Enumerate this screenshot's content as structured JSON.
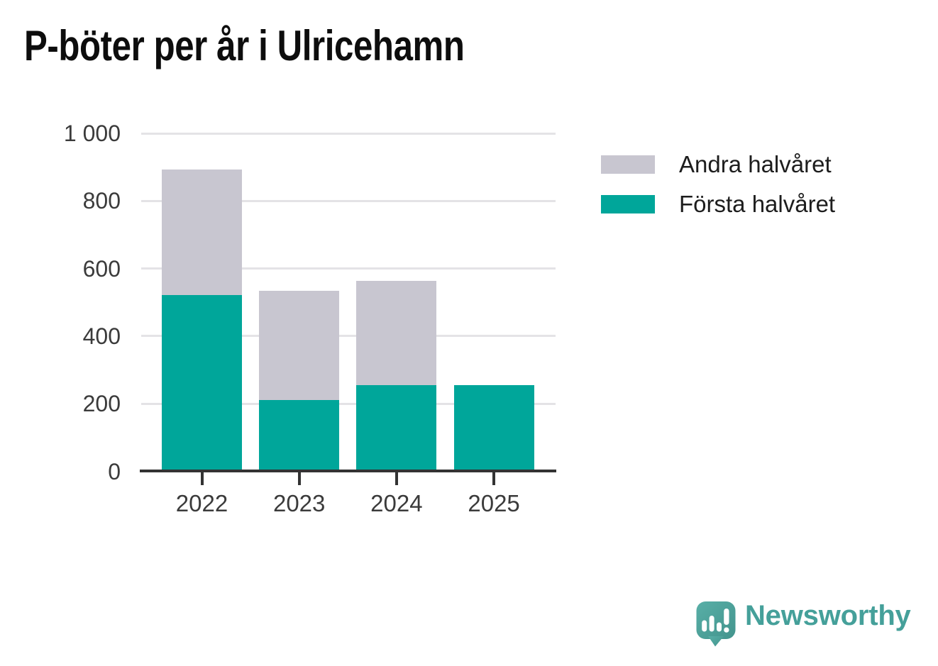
{
  "title": "P-böter per år i Ulricehamn",
  "legend": {
    "items": [
      {
        "label": "Andra halvåret",
        "color": "#c8c6d0"
      },
      {
        "label": "Första halvåret",
        "color": "#00a69a"
      }
    ]
  },
  "chart_data": {
    "type": "bar",
    "stacked": true,
    "title": "P-böter per år i Ulricehamn",
    "categories": [
      "2022",
      "2023",
      "2024",
      "2025"
    ],
    "series": [
      {
        "name": "Första halvåret",
        "color": "#00a69a",
        "values": [
          522,
          210,
          256,
          256
        ]
      },
      {
        "name": "Andra halvåret",
        "color": "#c8c6d0",
        "values": [
          370,
          324,
          307,
          0
        ]
      }
    ],
    "totals": [
      892,
      534,
      563,
      256
    ],
    "xlabel": "",
    "ylabel": "",
    "ylim": [
      0,
      1000
    ],
    "yticks": [
      0,
      200,
      400,
      600,
      800,
      1000
    ],
    "ytick_labels": [
      "0",
      "200",
      "400",
      "600",
      "800",
      "1 000"
    ],
    "grid": true,
    "legend_position": "outside-upper-right"
  },
  "branding": {
    "logo_text": "Newsworthy",
    "logo_icon": "newsworthy-speech-bubble-bar-chart-icon",
    "logo_color": "#45a09a"
  },
  "colors": {
    "first_half": "#00a69a",
    "second_half": "#c8c6d0",
    "axis": "#333333",
    "gridline": "#e4e3e6",
    "tick_label": "#3b3b3b",
    "title": "#0d0d0d"
  }
}
